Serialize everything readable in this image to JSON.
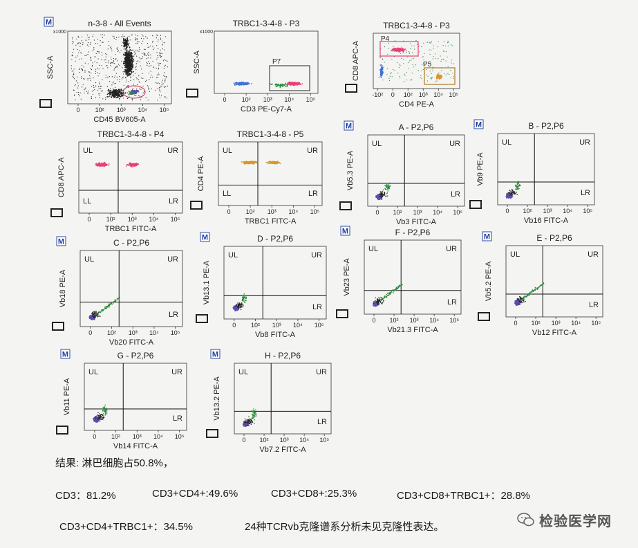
{
  "panels": [
    {
      "id": "p1",
      "title": "n-3-8 - All Events",
      "has_logo": true,
      "quadrant": false,
      "xlabel": "CD45 BV605-A",
      "ylabel": "SSC-A",
      "ymax_label": "x1000",
      "xticks": [
        "0",
        "10²",
        "10³",
        "10⁴",
        "10⁵"
      ],
      "gates": []
    },
    {
      "id": "p2",
      "title": "TRBC1-3-4-8 - P3",
      "has_logo": false,
      "quadrant": false,
      "xlabel": "CD3 PE-Cy7-A",
      "ylabel": "SSC-A",
      "ymax_label": "x1000",
      "xticks": [
        "0",
        "10²",
        "10³",
        "10⁴",
        "10⁵"
      ],
      "gates": [
        {
          "name": "P7",
          "color": "#222222"
        }
      ]
    },
    {
      "id": "p3",
      "title": "TRBC1-3-4-8 - P3",
      "has_logo": false,
      "quadrant": false,
      "xlabel": "CD4 PE-A",
      "ylabel": "CD8 APC-A",
      "ymax_label": "",
      "xticks": [
        "-10²",
        "0",
        "10²",
        "10³",
        "10⁴",
        "10⁵"
      ],
      "gates": [
        {
          "name": "P4",
          "color": "#c03050"
        },
        {
          "name": "P5",
          "color": "#b07820"
        }
      ]
    },
    {
      "id": "p4",
      "title": "TRBC1-3-4-8 - P4",
      "has_logo": false,
      "quadrant": true,
      "xlabel": "TRBC1 FITC-A",
      "ylabel": "CD8 APC-A",
      "ymax_label": "",
      "xticks": [
        "0",
        "10²",
        "10³",
        "10⁴",
        "10⁵"
      ],
      "gates": []
    },
    {
      "id": "p5",
      "title": "TRBC1-3-4-8 - P5",
      "has_logo": false,
      "quadrant": true,
      "xlabel": "TRBC1 FITC-A",
      "ylabel": "CD4 PE-A",
      "ymax_label": "",
      "xticks": [
        "0",
        "10²",
        "10³",
        "10⁴",
        "10⁵"
      ],
      "gates": []
    },
    {
      "id": "p6",
      "title": "A - P2,P6",
      "has_logo": true,
      "quadrant": true,
      "xlabel": "Vb3 FITC-A",
      "ylabel": "Vb5.3 PE-A",
      "ymax_label": "",
      "xticks": [
        "0",
        "10²",
        "10³",
        "10⁴",
        "10⁵"
      ],
      "gates": []
    },
    {
      "id": "p7",
      "title": "B - P2,P6",
      "has_logo": true,
      "quadrant": true,
      "xlabel": "Vb16 FITC-A",
      "ylabel": "Vb9 PE-A",
      "ymax_label": "",
      "xticks": [
        "0",
        "10²",
        "10³",
        "10⁴",
        "10⁵"
      ],
      "gates": []
    },
    {
      "id": "p8",
      "title": "C - P2,P6",
      "has_logo": true,
      "quadrant": true,
      "xlabel": "Vb20 FITC-A",
      "ylabel": "Vb18 PE-A",
      "ymax_label": "",
      "xticks": [
        "0",
        "10²",
        "10³",
        "10⁴",
        "10⁵"
      ],
      "gates": []
    },
    {
      "id": "p9",
      "title": "D - P2,P6",
      "has_logo": true,
      "quadrant": true,
      "xlabel": "Vb8 FITC-A",
      "ylabel": "Vb13.1 PE-A",
      "ymax_label": "",
      "xticks": [
        "0",
        "10²",
        "10³",
        "10⁴",
        "10⁵"
      ],
      "gates": []
    },
    {
      "id": "p10",
      "title": "F - P2,P6",
      "has_logo": true,
      "quadrant": true,
      "xlabel": "Vb21.3 FITC-A",
      "ylabel": "Vb23 PE-A",
      "ymax_label": "",
      "xticks": [
        "0",
        "10²",
        "10³",
        "10⁴",
        "10⁵"
      ],
      "gates": []
    },
    {
      "id": "p11",
      "title": "E - P2,P6",
      "has_logo": true,
      "quadrant": true,
      "xlabel": "Vb12 FITC-A",
      "ylabel": "Vb5.2 PE-A",
      "ymax_label": "",
      "xticks": [
        "0",
        "10²",
        "10³",
        "10⁴",
        "10⁵"
      ],
      "gates": []
    },
    {
      "id": "p12",
      "title": "G - P2,P6",
      "has_logo": true,
      "quadrant": true,
      "xlabel": "Vb14 FITC-A",
      "ylabel": "Vb11 PE-A",
      "ymax_label": "",
      "xticks": [
        "0",
        "10²",
        "10³",
        "10⁴",
        "10⁵"
      ],
      "gates": []
    },
    {
      "id": "p13",
      "title": "H - P2,P6",
      "has_logo": true,
      "quadrant": true,
      "xlabel": "Vb7.2 FITC-A",
      "ylabel": "Vb13.2 PE-A",
      "ymax_label": "",
      "xticks": [
        "0",
        "10²",
        "10³",
        "10⁴",
        "10⁵"
      ],
      "gates": []
    }
  ],
  "quadrant_labels": {
    "ul": "UL",
    "ur": "UR",
    "ll": "LL",
    "lr": "LR"
  },
  "logo_letter": "M",
  "results": {
    "heading": "结果: 淋巴细胞占50.8%，",
    "cd3": "CD3：81.2%",
    "cd3_cd4": "CD3+CD4+:49.6%",
    "cd3_cd8": "CD3+CD8+:25.3%",
    "cd3_cd8_trbc1": "CD3+CD8+TRBC1+：28.8%",
    "cd3_cd4_trbc1": "CD3+CD4+TRBC1+：34.5%",
    "conclusion": "24种TCRvb克隆谱系分析未见克隆性表达。"
  },
  "watermark": "检验医学网",
  "colors": {
    "lymph": "#5a4fb0",
    "cd8": "#e8407a",
    "cd4": "#d9962a",
    "green": "#2a8a3a",
    "blue": "#3d6fd6",
    "black": "#222222"
  },
  "chart_data": {
    "type": "scatter",
    "title": "",
    "panels": [
      {
        "title": "n-3-8 - All Events",
        "xlabel": "CD45 BV605-A",
        "ylabel": "SSC-A"
      },
      {
        "title": "TRBC1-3-4-8 - P3",
        "xlabel": "CD3 PE-Cy7-A",
        "ylabel": "SSC-A",
        "gates": [
          "P7"
        ]
      },
      {
        "title": "TRBC1-3-4-8 - P3",
        "xlabel": "CD4 PE-A",
        "ylabel": "CD8 APC-A",
        "gates": [
          "P4",
          "P5"
        ]
      },
      {
        "title": "TRBC1-3-4-8 - P4",
        "xlabel": "TRBC1 FITC-A",
        "ylabel": "CD8 APC-A"
      },
      {
        "title": "TRBC1-3-4-8 - P5",
        "xlabel": "TRBC1 FITC-A",
        "ylabel": "CD4 PE-A"
      },
      {
        "title": "A - P2,P6",
        "xlabel": "Vb3 FITC-A",
        "ylabel": "Vb5.3 PE-A"
      },
      {
        "title": "B - P2,P6",
        "xlabel": "Vb16 FITC-A",
        "ylabel": "Vb9 PE-A"
      },
      {
        "title": "C - P2,P6",
        "xlabel": "Vb20 FITC-A",
        "ylabel": "Vb18 PE-A"
      },
      {
        "title": "D - P2,P6",
        "xlabel": "Vb8 FITC-A",
        "ylabel": "Vb13.1 PE-A"
      },
      {
        "title": "F - P2,P6",
        "xlabel": "Vb21.3 FITC-A",
        "ylabel": "Vb23 PE-A"
      },
      {
        "title": "E - P2,P6",
        "xlabel": "Vb12 FITC-A",
        "ylabel": "Vb5.2 PE-A"
      },
      {
        "title": "G - P2,P6",
        "xlabel": "Vb14 FITC-A",
        "ylabel": "Vb11 PE-A"
      },
      {
        "title": "H - P2,P6",
        "xlabel": "Vb7.2 FITC-A",
        "ylabel": "Vb13.2 PE-A"
      }
    ],
    "x_scale": "log",
    "xticks": [
      "0",
      "10²",
      "10³",
      "10⁴",
      "10⁵"
    ]
  }
}
